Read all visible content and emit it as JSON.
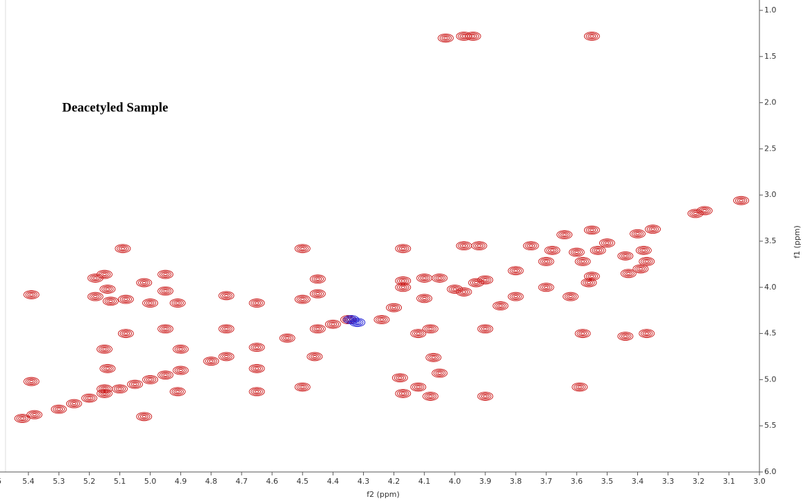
{
  "chart_data": {
    "type": "contour",
    "title": "Deacetyled Sample",
    "x_label": "f2 (ppm)",
    "y_label": "f1 (ppm)",
    "xlim": [
      5.5,
      3.0
    ],
    "ylim": [
      1.0,
      6.0
    ],
    "xticks": [
      {
        "value": 5.5,
        "label": ".5"
      },
      5.4,
      5.3,
      5.2,
      5.1,
      {
        "value": 5.0,
        "label": "5.0"
      },
      4.9,
      4.8,
      4.7,
      4.6,
      4.5,
      4.4,
      4.3,
      4.2,
      4.1,
      {
        "value": 4.0,
        "label": "4.0"
      },
      3.9,
      3.8,
      3.7,
      3.6,
      3.5,
      3.4,
      3.3,
      3.2,
      3.1,
      {
        "value": 3.0,
        "label": "3.0"
      }
    ],
    "yticks": [
      {
        "value": 1.0,
        "label": "1.0"
      },
      1.5,
      {
        "value": 2.0,
        "label": "2.0"
      },
      2.5,
      {
        "value": 3.0,
        "label": "3.0"
      },
      3.5,
      {
        "value": 4.0,
        "label": "4.0"
      },
      4.5,
      {
        "value": 5.0,
        "label": "5.0"
      },
      5.5,
      {
        "value": 6.0,
        "label": "6.0"
      }
    ],
    "series": [
      {
        "color": "#cc1f1f",
        "x": [
          4.03,
          3.97,
          3.94,
          3.55,
          3.21,
          3.18,
          3.06,
          5.09,
          4.5,
          4.17,
          3.97,
          3.92,
          3.75,
          3.68,
          3.64,
          3.55,
          3.53,
          3.58,
          3.56,
          3.55,
          3.44,
          3.38,
          3.37,
          3.43,
          3.39,
          5.39,
          5.39,
          5.18,
          5.18,
          5.15,
          5.14,
          5.13,
          5.08,
          5.02,
          5.0,
          4.95,
          4.95,
          4.91,
          4.75,
          4.65,
          4.5,
          4.45,
          4.45,
          5.08,
          4.95,
          4.75,
          5.15,
          4.9,
          5.14,
          5.15,
          4.65,
          4.65,
          4.91,
          4.5,
          5.02,
          4.46,
          4.24,
          4.17,
          4.17,
          4.1,
          4.05,
          3.93,
          3.97,
          3.85,
          3.8,
          3.7,
          3.62,
          4.12,
          4.08,
          3.9,
          3.58,
          3.44,
          3.37,
          4.18,
          4.05,
          4.12,
          4.17,
          4.08,
          3.9,
          3.59,
          4.07,
          5.42,
          5.38,
          5.3,
          5.25,
          5.2,
          5.15,
          5.1,
          5.05,
          5.0,
          4.95,
          4.9,
          4.8,
          4.75,
          4.65,
          4.55,
          4.45,
          4.4,
          4.35,
          4.2,
          4.1,
          4.0,
          3.9,
          3.8,
          3.7,
          3.6,
          3.5,
          3.4,
          3.35
        ],
        "y": [
          1.3,
          1.28,
          1.28,
          1.28,
          3.2,
          3.17,
          3.06,
          3.58,
          3.58,
          3.58,
          3.55,
          3.55,
          3.55,
          3.6,
          3.43,
          3.38,
          3.6,
          3.72,
          3.95,
          3.88,
          3.66,
          3.6,
          3.72,
          3.85,
          3.8,
          4.08,
          5.02,
          3.9,
          4.1,
          3.86,
          4.02,
          4.15,
          4.13,
          3.95,
          4.17,
          4.04,
          3.86,
          4.17,
          4.09,
          4.17,
          4.13,
          3.91,
          4.07,
          4.5,
          4.45,
          4.45,
          4.67,
          4.67,
          4.88,
          5.1,
          4.88,
          5.13,
          5.13,
          5.08,
          5.4,
          4.75,
          4.35,
          4.0,
          3.93,
          3.9,
          3.9,
          3.95,
          4.05,
          4.2,
          4.1,
          4.0,
          4.1,
          4.5,
          4.45,
          4.45,
          4.5,
          4.53,
          4.5,
          4.98,
          4.93,
          5.08,
          5.15,
          5.18,
          5.18,
          5.08,
          4.76,
          5.42,
          5.38,
          5.32,
          5.26,
          5.2,
          5.15,
          5.1,
          5.05,
          5.0,
          4.95,
          4.9,
          4.8,
          4.75,
          4.65,
          4.55,
          4.45,
          4.4,
          4.35,
          4.22,
          4.12,
          4.02,
          3.92,
          3.82,
          3.72,
          3.62,
          3.52,
          3.42,
          3.37
        ]
      },
      {
        "color": "#1f1fd6",
        "x": [
          4.34,
          4.32
        ],
        "y": [
          4.35,
          4.38
        ]
      }
    ]
  }
}
